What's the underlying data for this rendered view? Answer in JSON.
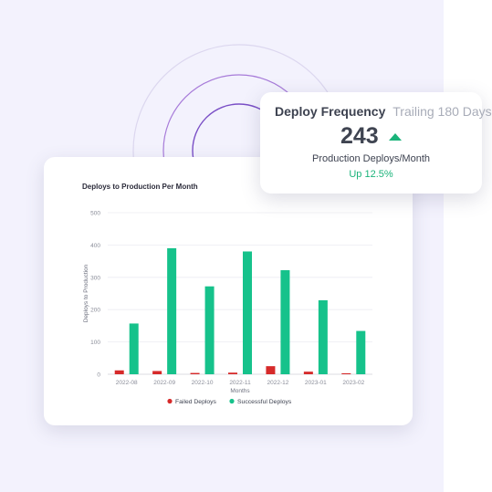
{
  "kpi": {
    "title": "Deploy Frequency",
    "subtitle": "Trailing 180 Days",
    "value": "243",
    "label": "Production Deploys/Month",
    "change": "Up 12.5%"
  },
  "colors": {
    "failed": "#d62a2a",
    "successful": "#16c28b",
    "ring_outer": "#dcd7ef",
    "ring_mid": "#a77bd9",
    "ring_inner": "#7a4fc6",
    "trend_up": "#1ab37a"
  },
  "chart_data": {
    "type": "bar",
    "title": "Deploys to Production Per Month",
    "xlabel": "Months",
    "ylabel": "Deploys to Production",
    "ylim": [
      0,
      500
    ],
    "yticks": [
      0,
      100,
      200,
      300,
      400,
      500
    ],
    "grid": true,
    "legend_position": "bottom",
    "categories": [
      "2022-08",
      "2022-09",
      "2022-10",
      "2022-11",
      "2022-12",
      "2023-01",
      "2023-02"
    ],
    "series": [
      {
        "name": "Failed Deploys",
        "color": "#d62a2a",
        "values": [
          12,
          10,
          4,
          5,
          25,
          8,
          3
        ]
      },
      {
        "name": "Successful Deploys",
        "color": "#16c28b",
        "values": [
          157,
          390,
          272,
          380,
          322,
          229,
          134
        ]
      }
    ]
  }
}
